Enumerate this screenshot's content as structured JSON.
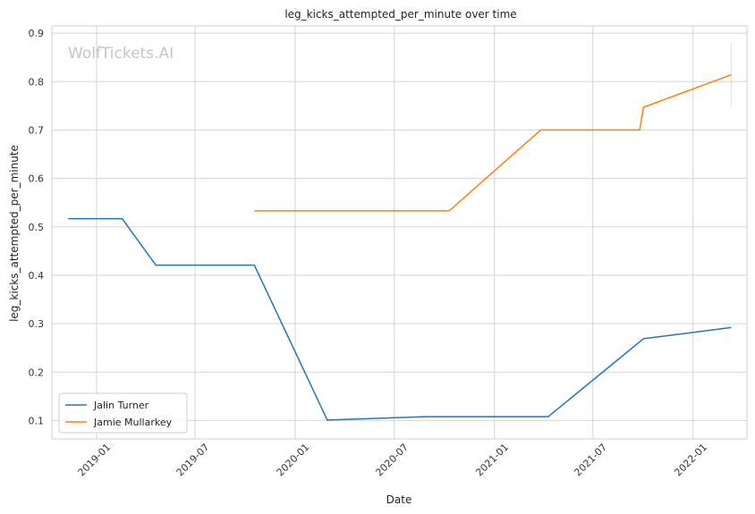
{
  "chart_data": {
    "type": "line",
    "title": "leg_kicks_attempted_per_minute over time",
    "xlabel": "Date",
    "ylabel": "leg_kicks_attempted_per_minute",
    "watermark": "WolfTickets.AI",
    "x_ticks": [
      "2019-01",
      "2019-07",
      "2020-01",
      "2020-07",
      "2021-01",
      "2021-07",
      "2022-01"
    ],
    "y_ticks": [
      "0.1",
      "0.2",
      "0.3",
      "0.4",
      "0.5",
      "0.6",
      "0.7",
      "0.8",
      "0.9"
    ],
    "xlim": [
      "2018-10-11",
      "2022-04-10"
    ],
    "ylim": [
      0.062,
      0.915
    ],
    "grid": true,
    "legend_position": "lower-left",
    "series": [
      {
        "name": "Jalin Turner",
        "color": "#1f77b4",
        "points": [
          {
            "x": "2018-11-10",
            "y": 0.517
          },
          {
            "x": "2019-02-17",
            "y": 0.517
          },
          {
            "x": "2019-04-20",
            "y": 0.421
          },
          {
            "x": "2019-10-18",
            "y": 0.421
          },
          {
            "x": "2020-02-29",
            "y": 0.101
          },
          {
            "x": "2020-08-29",
            "y": 0.108
          },
          {
            "x": "2021-04-10",
            "y": 0.108
          },
          {
            "x": "2021-10-02",
            "y": 0.269
          },
          {
            "x": "2022-03-12",
            "y": 0.292
          }
        ]
      },
      {
        "name": "Jamie Mullarkey",
        "color": "#ff7f0e",
        "points": [
          {
            "x": "2019-10-18",
            "y": 0.533
          },
          {
            "x": "2020-10-10",
            "y": 0.533
          },
          {
            "x": "2021-03-27",
            "y": 0.7
          },
          {
            "x": "2021-09-25",
            "y": 0.7
          },
          {
            "x": "2021-10-02",
            "y": 0.747
          },
          {
            "x": "2022-03-12",
            "y": 0.814
          }
        ],
        "error_bar": {
          "x": "2022-03-12",
          "low": 0.748,
          "high": 0.88
        }
      }
    ]
  }
}
